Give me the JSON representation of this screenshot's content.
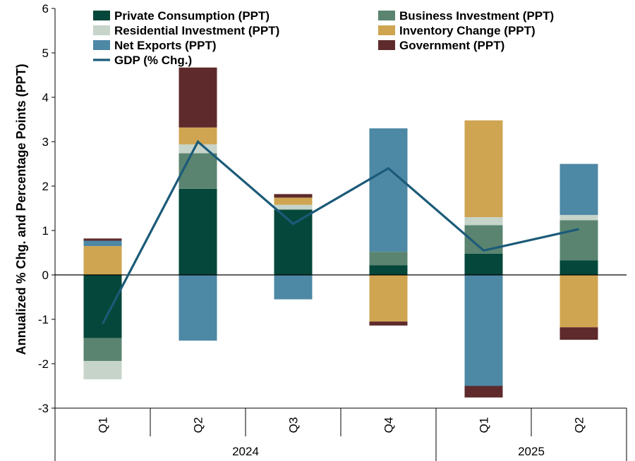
{
  "chart_data": {
    "type": "bar",
    "stacked": true,
    "title": "",
    "ylabel": "Annualized % Chg. and Percentage Points (PPT)",
    "xlabel": "",
    "ylim": [
      -3,
      6
    ],
    "yticks": [
      6,
      5,
      4,
      3,
      2,
      1,
      0,
      -1,
      -2,
      -3
    ],
    "grid": false,
    "legend_position": "top",
    "categories": [
      "Q1",
      "Q2",
      "Q3",
      "Q4",
      "Q1",
      "Q2"
    ],
    "year_groups": [
      {
        "label": "2024",
        "categories": [
          "Q1",
          "Q2",
          "Q3",
          "Q4"
        ]
      },
      {
        "label": "2025",
        "categories": [
          "Q1",
          "Q2"
        ]
      }
    ],
    "series": [
      {
        "name": "Private Consumption (PPT)",
        "color": "#05473a",
        "values": [
          -1.42,
          1.94,
          1.46,
          0.22,
          0.48,
          0.33
        ]
      },
      {
        "name": "Business Investment (PPT)",
        "color": "#5a8470",
        "values": [
          -0.52,
          0.8,
          0.02,
          0.3,
          0.64,
          0.9
        ]
      },
      {
        "name": "Residential Investment (PPT)",
        "color": "#c6d4ca",
        "values": [
          -0.41,
          0.2,
          0.1,
          0.0,
          0.18,
          0.12
        ]
      },
      {
        "name": "Inventory Change (PPT)",
        "color": "#cfa552",
        "values": [
          0.65,
          0.38,
          0.16,
          -1.05,
          2.18,
          -1.18
        ]
      },
      {
        "name": "Net Exports (PPT)",
        "color": "#4d88a5",
        "values": [
          0.12,
          -1.48,
          -0.55,
          2.78,
          -2.5,
          1.15
        ]
      },
      {
        "name": "Government (PPT)",
        "color": "#5e2a2b",
        "values": [
          0.05,
          1.35,
          0.08,
          -0.09,
          -0.26,
          -0.28
        ]
      }
    ],
    "line_series": {
      "name": "GDP (% Chg.)",
      "color": "#1b5a78",
      "values": [
        -1.1,
        3.0,
        1.15,
        2.4,
        0.55,
        1.03
      ]
    }
  }
}
